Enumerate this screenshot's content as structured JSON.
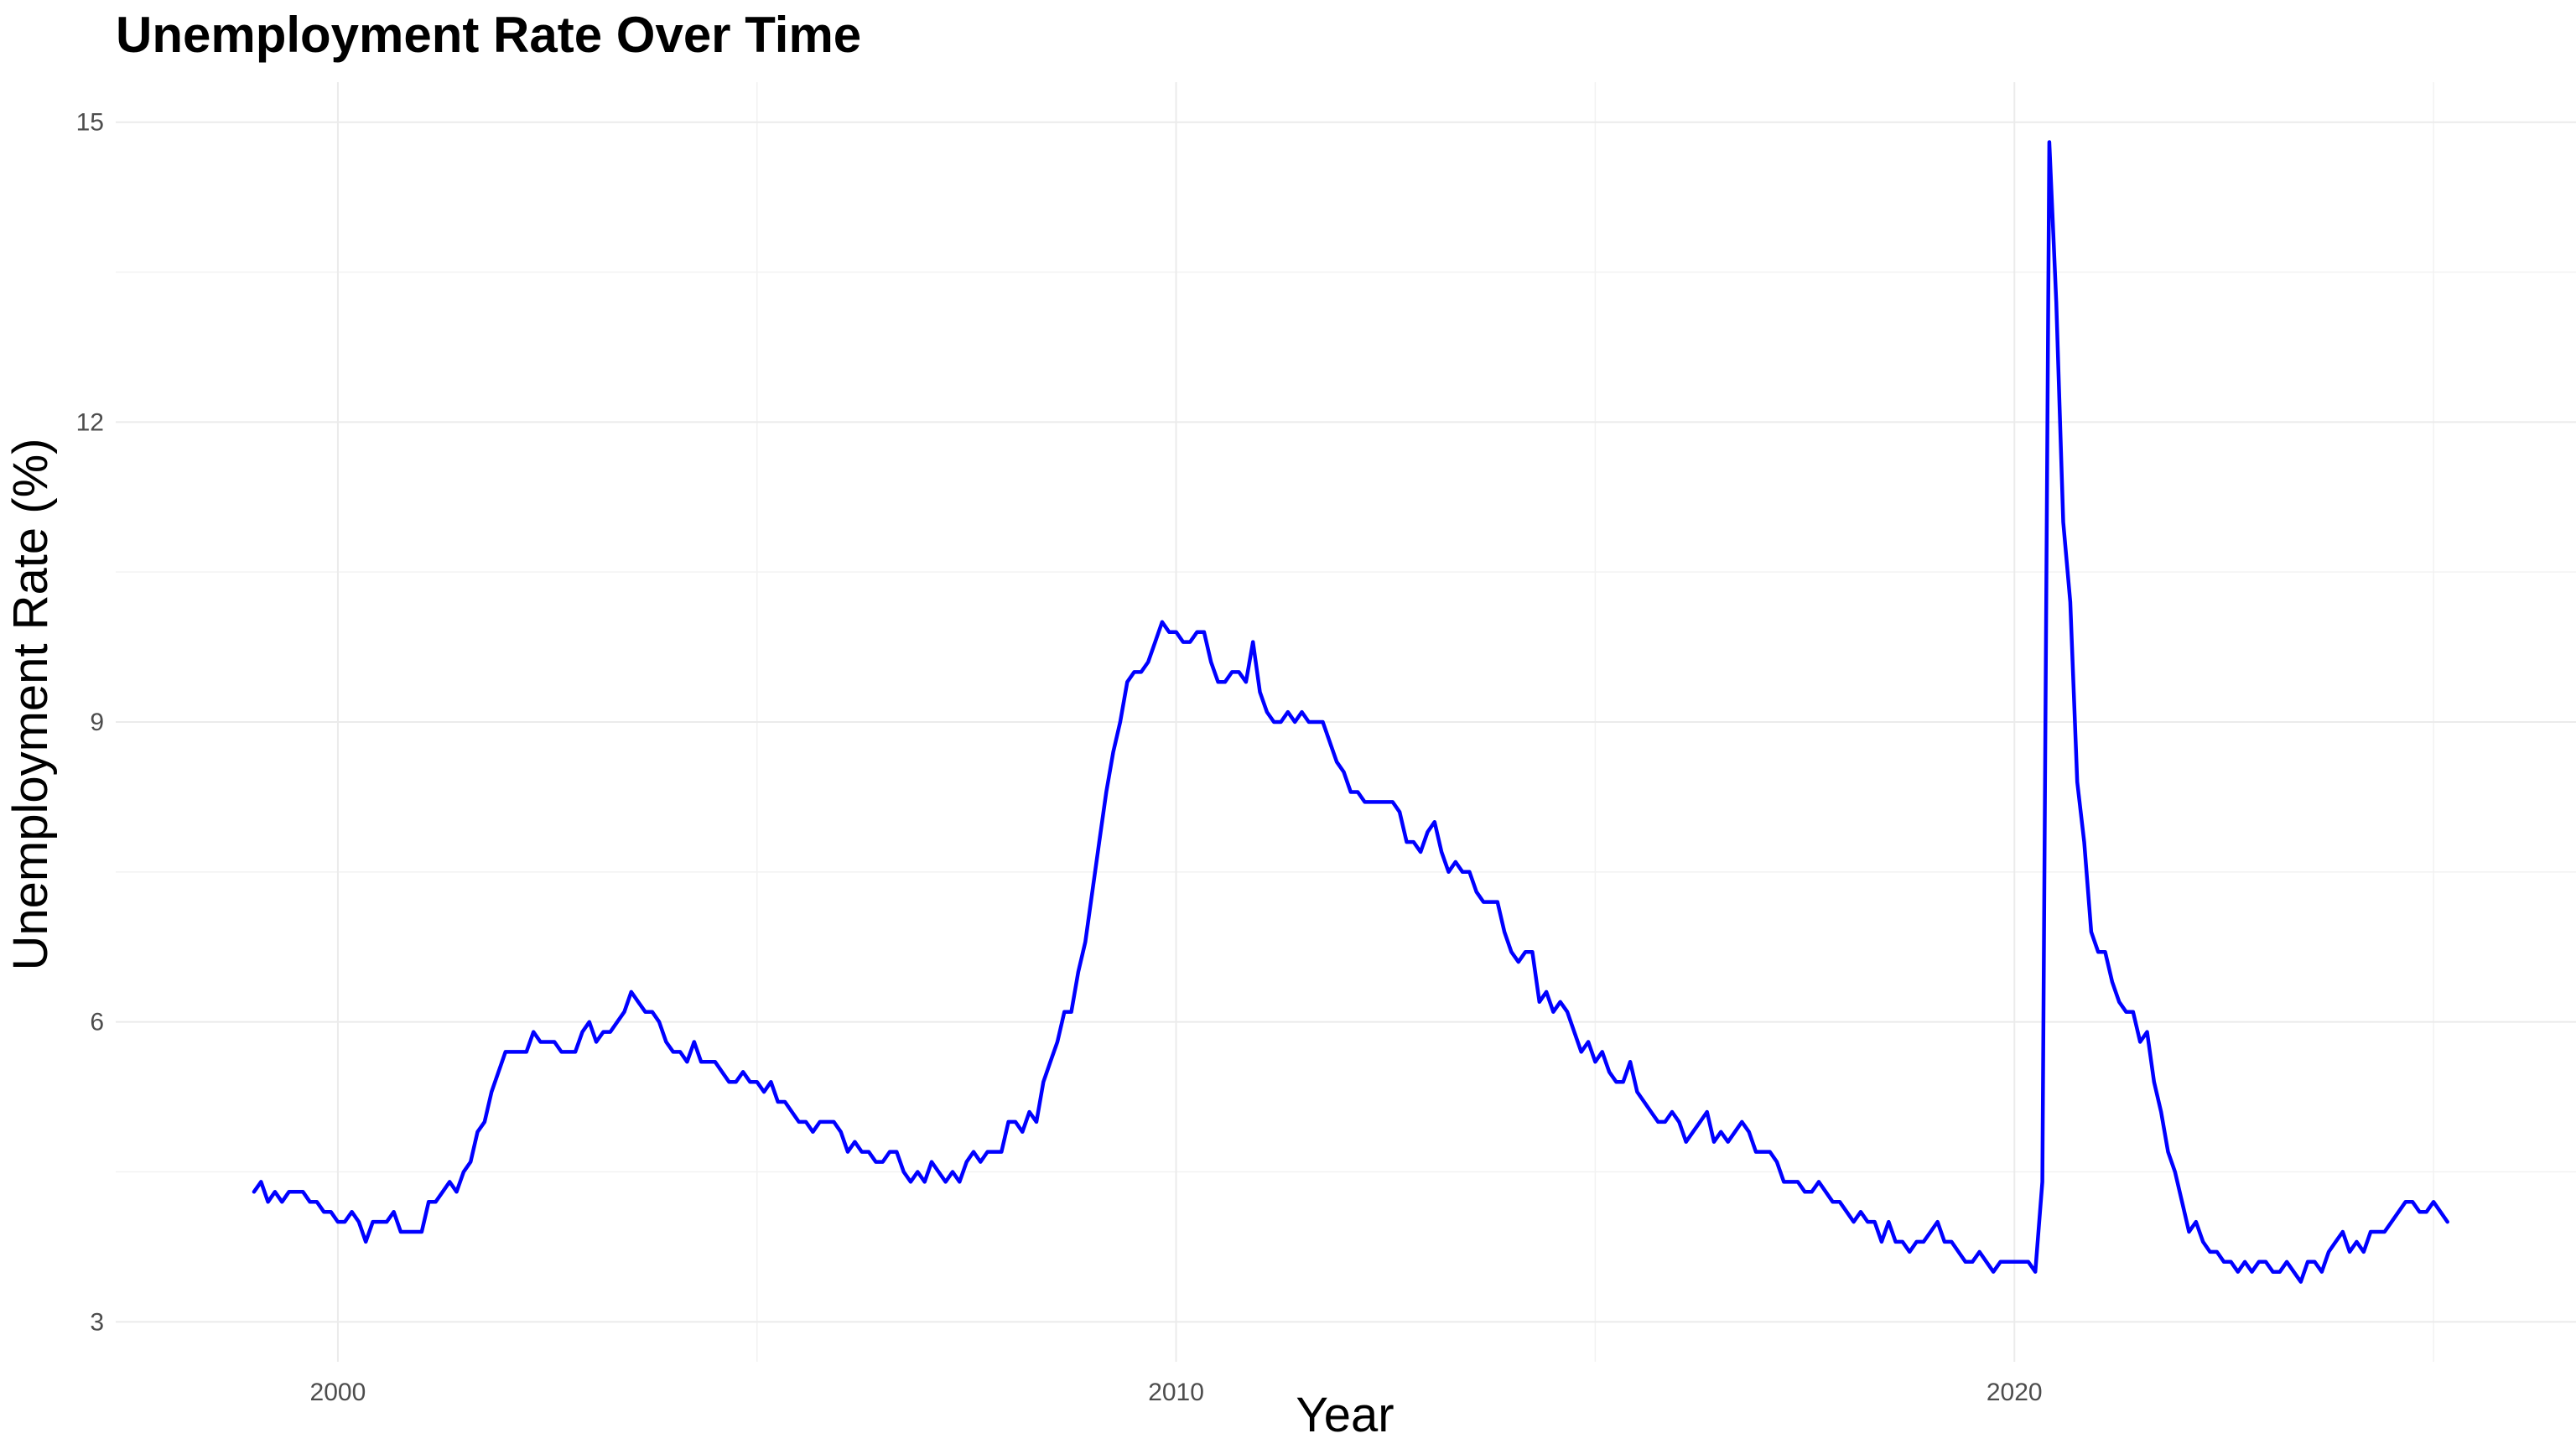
{
  "chart_data": {
    "type": "line",
    "title": "Unemployment Rate Over Time",
    "xlabel": "Year",
    "ylabel": "Unemployment Rate (%)",
    "xlim": [
      1997.35,
      2026.7
    ],
    "ylim": [
      2.6,
      15.4
    ],
    "x_ticks": [
      2000,
      2010,
      2020
    ],
    "x_minor_ticks": [
      1995,
      2005,
      2015,
      2025
    ],
    "y_ticks": [
      3,
      6,
      9,
      12,
      15
    ],
    "y_minor_ticks": [
      4.5,
      7.5,
      10.5,
      13.5
    ],
    "grid": true,
    "legend": "none",
    "line_color": "#0000ff",
    "series": [
      {
        "start_year": 1999.0,
        "step_months": 1,
        "values": [
          4.3,
          4.4,
          4.2,
          4.3,
          4.2,
          4.3,
          4.3,
          4.3,
          4.2,
          4.2,
          4.1,
          4.1,
          4.0,
          4.0,
          4.1,
          4.0,
          3.8,
          4.0,
          4.0,
          4.0,
          4.1,
          3.9,
          3.9,
          3.9,
          3.9,
          4.2,
          4.2,
          4.3,
          4.4,
          4.3,
          4.5,
          4.6,
          4.9,
          5.0,
          5.3,
          5.5,
          5.7,
          5.7,
          5.7,
          5.7,
          5.9,
          5.8,
          5.8,
          5.8,
          5.7,
          5.7,
          5.7,
          5.9,
          6.0,
          5.8,
          5.9,
          5.9,
          6.0,
          6.1,
          6.3,
          6.2,
          6.1,
          6.1,
          6.0,
          5.8,
          5.7,
          5.7,
          5.6,
          5.8,
          5.6,
          5.6,
          5.6,
          5.5,
          5.4,
          5.4,
          5.5,
          5.4,
          5.4,
          5.3,
          5.4,
          5.2,
          5.2,
          5.1,
          5.0,
          5.0,
          4.9,
          5.0,
          5.0,
          5.0,
          4.9,
          4.7,
          4.8,
          4.7,
          4.7,
          4.6,
          4.6,
          4.7,
          4.7,
          4.5,
          4.4,
          4.5,
          4.4,
          4.6,
          4.5,
          4.4,
          4.5,
          4.4,
          4.6,
          4.7,
          4.6,
          4.7,
          4.7,
          4.7,
          5.0,
          5.0,
          4.9,
          5.1,
          5.0,
          5.4,
          5.6,
          5.8,
          6.1,
          6.1,
          6.5,
          6.8,
          7.3,
          7.8,
          8.3,
          8.7,
          9.0,
          9.4,
          9.5,
          9.5,
          9.6,
          9.8,
          10.0,
          9.9,
          9.9,
          9.8,
          9.8,
          9.9,
          9.9,
          9.6,
          9.4,
          9.4,
          9.5,
          9.5,
          9.4,
          9.8,
          9.3,
          9.1,
          9.0,
          9.0,
          9.1,
          9.0,
          9.1,
          9.0,
          9.0,
          9.0,
          8.8,
          8.6,
          8.5,
          8.3,
          8.3,
          8.2,
          8.2,
          8.2,
          8.2,
          8.2,
          8.1,
          7.8,
          7.8,
          7.7,
          7.9,
          8.0,
          7.7,
          7.5,
          7.6,
          7.5,
          7.5,
          7.3,
          7.2,
          7.2,
          7.2,
          6.9,
          6.7,
          6.6,
          6.7,
          6.7,
          6.2,
          6.3,
          6.1,
          6.2,
          6.1,
          5.9,
          5.7,
          5.8,
          5.6,
          5.7,
          5.5,
          5.4,
          5.4,
          5.6,
          5.3,
          5.2,
          5.1,
          5.0,
          5.0,
          5.1,
          5.0,
          4.8,
          4.9,
          5.0,
          5.1,
          4.8,
          4.9,
          4.8,
          4.9,
          5.0,
          4.9,
          4.7,
          4.7,
          4.7,
          4.6,
          4.4,
          4.4,
          4.4,
          4.3,
          4.3,
          4.4,
          4.3,
          4.2,
          4.2,
          4.1,
          4.0,
          4.1,
          4.0,
          4.0,
          3.8,
          4.0,
          3.8,
          3.8,
          3.7,
          3.8,
          3.8,
          3.9,
          4.0,
          3.8,
          3.8,
          3.7,
          3.6,
          3.6,
          3.7,
          3.6,
          3.5,
          3.6,
          3.6,
          3.6,
          3.6,
          3.6,
          3.5,
          4.4,
          14.8,
          13.2,
          11.0,
          10.2,
          8.4,
          7.8,
          6.9,
          6.7,
          6.7,
          6.4,
          6.2,
          6.1,
          6.1,
          5.8,
          5.9,
          5.4,
          5.1,
          4.7,
          4.5,
          4.2,
          3.9,
          4.0,
          3.8,
          3.7,
          3.7,
          3.6,
          3.6,
          3.5,
          3.6,
          3.5,
          3.6,
          3.6,
          3.5,
          3.5,
          3.6,
          3.5,
          3.4,
          3.6,
          3.6,
          3.5,
          3.7,
          3.8,
          3.9,
          3.7,
          3.8,
          3.7,
          3.9,
          3.9,
          3.9,
          4.0,
          4.1,
          4.2,
          4.2,
          4.1,
          4.1,
          4.2,
          4.1,
          4.0
        ]
      }
    ]
  }
}
